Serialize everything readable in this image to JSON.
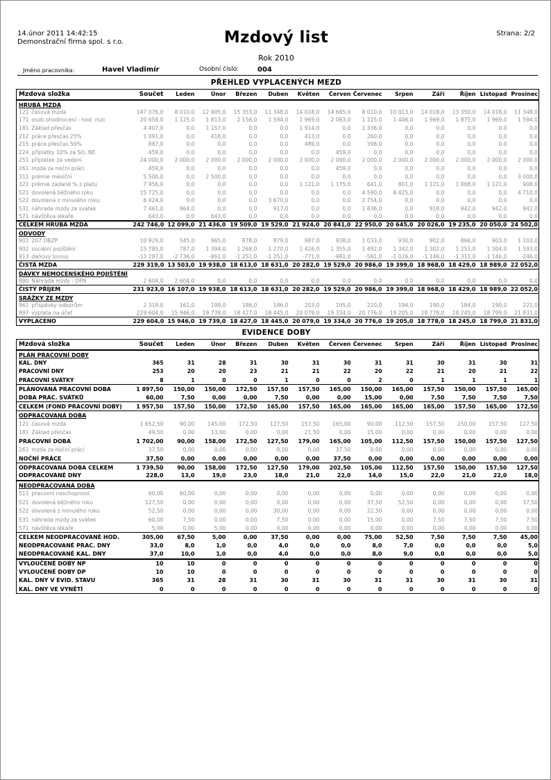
{
  "header": {
    "datetime": "14.únor 2011  14:42:15",
    "company": "Demonstrační firma spol. s r.o.",
    "title": "Mzdový list",
    "page": "Strana: 2/2",
    "year": "Rok 2010",
    "employee_label": "Jméno pracovníka:",
    "employee_name": "Havel Vladimír",
    "number_label": "Osobní číslo:",
    "number": "004"
  },
  "columns": [
    "Mzdová složka",
    "Součet",
    "Leden",
    "Únor",
    "Březen",
    "Duben",
    "Květen",
    "Červen",
    "Červenec",
    "Srpen",
    "Září",
    "Říjen",
    "Listopad",
    "Prosinec"
  ],
  "wages": {
    "title": "PŘEHLED VYPLACENÝCH MEZD",
    "rows": [
      {
        "t": "s",
        "label": "HRUBÁ MZDA"
      },
      {
        "t": "i",
        "code": "121",
        "label": "časová mzda",
        "v": [
          "147 076,0",
          "8 010,0",
          "12 905,0",
          "15 353,0",
          "11 348,0",
          "14 018,0",
          "14 685,0",
          "8 010,0",
          "10 013,0",
          "14 018,0",
          "13 350,0",
          "14 018,0",
          "11 348,0"
        ]
      },
      {
        "t": "i",
        "code": "171",
        "label": "osob.ohodnocení - hod. mzc",
        "v": [
          "20 658,0",
          "1 125,0",
          "1 813,0",
          "2 156,0",
          "1 594,0",
          "1 969,0",
          "2 063,0",
          "1 125,0",
          "1 406,0",
          "1 969,0",
          "1 875,0",
          "1 969,0",
          "1 594,0"
        ]
      },
      {
        "t": "i",
        "code": "181",
        "label": "Základ přesčas",
        "v": [
          "4 407,0",
          "0,0",
          "1 157,0",
          "0,0",
          "0,0",
          "1 914,0",
          "0,0",
          "1 336,0",
          "0,0",
          "0,0",
          "0,0",
          "0,0",
          "0,0"
        ]
      },
      {
        "t": "i",
        "code": "212",
        "label": "práce přesčas 25%",
        "v": [
          "1 091,0",
          "0,0",
          "418,0",
          "0,0",
          "0,0",
          "413,0",
          "0,0",
          "260,0",
          "0,0",
          "0,0",
          "0,0",
          "0,0",
          "0,0"
        ]
      },
      {
        "t": "i",
        "code": "215",
        "label": "práce přesčas 50%",
        "v": [
          "887,0",
          "0,0",
          "0,0",
          "0,0",
          "0,0",
          "489,0",
          "0,0",
          "398,0",
          "0,0",
          "0,0",
          "0,0",
          "0,0",
          "0,0"
        ]
      },
      {
        "t": "i",
        "code": "224",
        "label": "příplatky 10% za SO, NE",
        "v": [
          "459,0",
          "0,0",
          "0,0",
          "0,0",
          "0,0",
          "0,0",
          "459,0",
          "0,0",
          "0,0",
          "0,0",
          "0,0",
          "0,0",
          "0,0"
        ]
      },
      {
        "t": "i",
        "code": "251",
        "label": "příplatek za vedení",
        "v": [
          "24 000,0",
          "2 000,0",
          "2 000,0",
          "2 000,0",
          "2 000,0",
          "2 000,0",
          "2 000,0",
          "2 000,0",
          "2 000,0",
          "2 000,0",
          "2 000,0",
          "2 000,0",
          "2 000,0"
        ]
      },
      {
        "t": "i",
        "code": "261",
        "label": "mzda za noční práci",
        "v": [
          "459,0",
          "0,0",
          "0,0",
          "0,0",
          "0,0",
          "0,0",
          "459,0",
          "0,0",
          "0,0",
          "0,0",
          "0,0",
          "0,0",
          "0,0"
        ]
      },
      {
        "t": "i",
        "code": "311",
        "label": "prémie měsíční",
        "v": [
          "5 500,0",
          "0,0",
          "2 500,0",
          "0,0",
          "0,0",
          "0,0",
          "0,0",
          "0,0",
          "0,0",
          "0,0",
          "0,0",
          "0,0",
          "3 000,0"
        ]
      },
      {
        "t": "i",
        "code": "321",
        "label": "prémie zadané % z platu",
        "v": [
          "7 956,0",
          "0,0",
          "0,0",
          "0,0",
          "0,0",
          "1 121,0",
          "1 175,0",
          "641,0",
          "801,0",
          "1 121,0",
          "1 068,0",
          "1 121,0",
          "908,0"
        ]
      },
      {
        "t": "i",
        "code": "521",
        "label": "dovolená běžného roku",
        "v": [
          "15 725,0",
          "0,0",
          "0,0",
          "0,0",
          "0,0",
          "0,0",
          "0,0",
          "4 590,0",
          "6 425,0",
          "0,0",
          "0,0",
          "0,0",
          "4 710,0"
        ]
      },
      {
        "t": "i",
        "code": "522",
        "label": "dovolená z minulého roku",
        "v": [
          "6 424,0",
          "0,0",
          "0,0",
          "0,0",
          "3 670,0",
          "0,0",
          "0,0",
          "2 754,0",
          "0,0",
          "0,0",
          "0,0",
          "0,0",
          "0,0"
        ]
      },
      {
        "t": "i",
        "code": "531",
        "label": "náhrada mzdy za svátek",
        "v": [
          "7 461,0",
          "964,0",
          "0,0",
          "0,0",
          "917,0",
          "0,0",
          "0,0",
          "1 836,0",
          "0,0",
          "918,0",
          "942,0",
          "942,0",
          "942,0"
        ]
      },
      {
        "t": "i",
        "code": "571",
        "label": "návštěva lékaře",
        "v": [
          "643,0",
          "0,0",
          "643,0",
          "0,0",
          "0,0",
          "0,0",
          "0,0",
          "0,0",
          "0,0",
          "0,0",
          "0,0",
          "0,0",
          "0,0"
        ]
      },
      {
        "t": "t tt bb",
        "label": "CELKEM HRUBÁ MZDA",
        "v": [
          "242 746,0",
          "12 099,0",
          "21 436,0",
          "19 509,0",
          "19 529,0",
          "21 924,0",
          "20 841,0",
          "22 950,0",
          "20 645,0",
          "20 026,0",
          "19 235,0",
          "20 050,0",
          "24 502,0"
        ]
      },
      {
        "t": "s",
        "label": "ODVODY"
      },
      {
        "t": "i",
        "code": "901",
        "label": "207 OBZP",
        "v": [
          "10 929,0",
          "545,0",
          "965,0",
          "878,0",
          "879,0",
          "987,0",
          "938,0",
          "1 033,0",
          "930,0",
          "902,0",
          "866,0",
          "903,0",
          "1 103,0"
        ]
      },
      {
        "t": "i",
        "code": "902",
        "label": "sociální pojištění",
        "v": [
          "15 785,0",
          "787,0",
          "1 394,0",
          "1 269,0",
          "1 270,0",
          "1 426,0",
          "1 355,0",
          "1 492,0",
          "1 342,0",
          "1 302,0",
          "1 251,0",
          "1 304,0",
          "1 593,0"
        ]
      },
      {
        "t": "i",
        "code": "913",
        "label": "daňový bonus",
        "v": [
          "-13 287,0",
          "-2 736,0",
          "-861,0",
          "-1 251,0",
          "-1 251,0",
          "-771,0",
          "-981,0",
          "-561,0",
          "-1 026,0",
          "-1 146,0",
          "-1 311,0",
          "-1 146,0",
          "-246,0"
        ]
      },
      {
        "t": "t bt bb",
        "label": "ČISTÁ MZDA",
        "v": [
          "229 319,0",
          "13 503,0",
          "19 938,0",
          "18 613,0",
          "18 631,0",
          "20 282,0",
          "19 529,0",
          "20 986,0",
          "19 399,0",
          "18 968,0",
          "18 429,0",
          "18 989,0",
          "22 052,0"
        ]
      },
      {
        "t": "s",
        "label": "DÁVKY NEMOCENSKÉHO POJIŠTĚNÍ"
      },
      {
        "t": "i",
        "code": "880",
        "label": "Náhrada mzdy - DPN",
        "v": [
          "2 604,0",
          "2 604,0",
          "0,0",
          "0,0",
          "0,0",
          "0,0",
          "0,0",
          "0,0",
          "0,0",
          "0,0",
          "0,0",
          "0,0",
          "0,0"
        ]
      },
      {
        "t": "t bt bb",
        "label": "ČISTÝ PŘÍJEM",
        "v": [
          "231 923,0",
          "16 107,0",
          "19 938,0",
          "18 613,0",
          "18 631,0",
          "20 282,0",
          "19 529,0",
          "20 986,0",
          "19 399,0",
          "18 968,0",
          "18 429,0",
          "18 989,0",
          "22 052,0"
        ]
      },
      {
        "t": "s",
        "label": "SRÁŽKY ZE MZDY"
      },
      {
        "t": "i",
        "code": "961",
        "label": "příspěvky odborům",
        "v": [
          "2 319,0",
          "161,0",
          "199,0",
          "186,0",
          "186,0",
          "203,0",
          "195,0",
          "210,0",
          "194,0",
          "190,0",
          "184,0",
          "190,0",
          "221,0"
        ]
      },
      {
        "t": "i",
        "code": "997",
        "label": "výplata na účet",
        "v": [
          "229 604,0",
          "15 946,0",
          "19 739,0",
          "18 427,0",
          "18 445,0",
          "20 079,0",
          "19 334,0",
          "20 776,0",
          "19 205,0",
          "18 778,0",
          "18 245,0",
          "18 799,0",
          "21 831,0"
        ]
      },
      {
        "t": "t bt",
        "label": "VYPLACENO",
        "v": [
          "229 604,0",
          "15 946,0",
          "19 739,0",
          "18 427,0",
          "18 445,0",
          "20 079,0",
          "19 334,0",
          "20 776,0",
          "19 205,0",
          "18 778,0",
          "18 245,0",
          "18 799,0",
          "21 831,0"
        ]
      }
    ]
  },
  "time": {
    "title": "EVIDENCE DOBY",
    "rows": [
      {
        "t": "s",
        "label": "PLÁN PRACOVNÍ DOBY"
      },
      {
        "t": "b",
        "label": "KAL. DNY",
        "v": [
          "365",
          "31",
          "28",
          "31",
          "30",
          "31",
          "30",
          "31",
          "31",
          "30",
          "31",
          "30",
          "31"
        ]
      },
      {
        "t": "b",
        "label": "PRACOVNÍ DNY",
        "v": [
          "253",
          "20",
          "20",
          "23",
          "21",
          "21",
          "22",
          "20",
          "22",
          "21",
          "20",
          "21",
          "22"
        ]
      },
      {
        "t": "b",
        "label": "PRACOVNÍ SVÁTKY",
        "v": [
          "8",
          "1",
          "0",
          "0",
          "1",
          "0",
          "0",
          "2",
          "0",
          "1",
          "1",
          "1",
          "1"
        ]
      },
      {
        "t": "t bt",
        "label": "PLÁNOVANÁ PRACOVNÍ DOBA",
        "v": [
          "1 897,50",
          "150,00",
          "150,00",
          "172,50",
          "157,50",
          "157,50",
          "165,00",
          "150,00",
          "165,00",
          "157,50",
          "150,00",
          "157,50",
          "165,00"
        ]
      },
      {
        "t": "t",
        "label": "DOBA PRAC. SVÁTKŮ",
        "v": [
          "60,00",
          "7,50",
          "0,00",
          "0,00",
          "7,50",
          "0,00",
          "0,00",
          "15,00",
          "0,00",
          "7,50",
          "7,50",
          "7,50",
          "7,50"
        ]
      },
      {
        "t": "t bt bb",
        "label": "CELKEM (FOND PRACOVNÍ DOBY)",
        "v": [
          "1 957,50",
          "157,50",
          "150,00",
          "172,50",
          "165,00",
          "157,50",
          "165,00",
          "165,00",
          "165,00",
          "165,00",
          "157,50",
          "165,00",
          "172,50"
        ]
      },
      {
        "t": "s",
        "label": "ODPRACOVANÁ DOBA"
      },
      {
        "t": "i",
        "code": "121",
        "label": "časová mzda",
        "v": [
          "1 652,50",
          "90,00",
          "145,00",
          "172,50",
          "127,50",
          "157,50",
          "165,00",
          "90,00",
          "112,50",
          "157,50",
          "150,00",
          "157,50",
          "127,50"
        ]
      },
      {
        "t": "i",
        "code": "181",
        "label": "Základ přesčas",
        "v": [
          "49,50",
          "0,00",
          "13,00",
          "0,00",
          "0,00",
          "21,50",
          "0,00",
          "15,00",
          "0,00",
          "0,00",
          "0,00",
          "0,00",
          "0,00"
        ]
      },
      {
        "t": "t",
        "label": "PRACOVNÍ DOBA",
        "v": [
          "1 702,00",
          "90,00",
          "158,00",
          "172,50",
          "127,50",
          "179,00",
          "165,00",
          "105,00",
          "112,50",
          "157,50",
          "150,00",
          "157,50",
          "127,50"
        ]
      },
      {
        "t": "i",
        "code": "261",
        "label": "mzda za noční práci",
        "v": [
          "37,50",
          "0,00",
          "0,00",
          "0,00",
          "0,00",
          "0,00",
          "37,50",
          "0,00",
          "0,00",
          "0,00",
          "0,00",
          "0,00",
          "0,00"
        ]
      },
      {
        "t": "t",
        "label": "NOČNÍ PRÁCE",
        "v": [
          "37,50",
          "0,00",
          "0,00",
          "0,00",
          "0,00",
          "0,00",
          "37,50",
          "0,00",
          "0,00",
          "0,00",
          "0,00",
          "0,00",
          "0,00"
        ]
      },
      {
        "t": "t bt",
        "label": "ODPRACOVANÁ DOBA CELKEM",
        "v": [
          "1 739,50",
          "90,00",
          "158,00",
          "172,50",
          "127,50",
          "179,00",
          "202,50",
          "105,00",
          "112,50",
          "157,50",
          "150,00",
          "157,50",
          "127,50"
        ]
      },
      {
        "t": "t tb",
        "label": "ODPRACOVANÉ DNY",
        "v": [
          "228,0",
          "13,0",
          "19,0",
          "23,0",
          "18,0",
          "21,0",
          "22,0",
          "14,0",
          "15,0",
          "22,0",
          "21,0",
          "22,0",
          "18,0"
        ]
      },
      {
        "t": "s",
        "label": "NEODPRACOVANÁ DOBA"
      },
      {
        "t": "i",
        "code": "511",
        "label": "pracovní neschopnost",
        "v": [
          "60,00",
          "60,00",
          "0,00",
          "0,00",
          "0,00",
          "0,00",
          "0,00",
          "0,00",
          "0,00",
          "0,00",
          "0,00",
          "0,00",
          "0,00"
        ]
      },
      {
        "t": "i",
        "code": "521",
        "label": "dovolená běžného roku",
        "v": [
          "127,50",
          "0,00",
          "0,00",
          "0,00",
          "0,00",
          "0,00",
          "0,00",
          "37,50",
          "52,50",
          "0,00",
          "0,00",
          "0,00",
          "37,50"
        ]
      },
      {
        "t": "i",
        "code": "522",
        "label": "dovolená z minulého roku",
        "v": [
          "52,50",
          "0,00",
          "0,00",
          "0,00",
          "30,00",
          "0,00",
          "0,00",
          "22,50",
          "0,00",
          "0,00",
          "0,00",
          "0,00",
          "0,00"
        ]
      },
      {
        "t": "i",
        "code": "531",
        "label": "náhrada mzdy za svátek",
        "v": [
          "60,00",
          "7,50",
          "0,00",
          "0,00",
          "7,50",
          "0,00",
          "0,00",
          "15,00",
          "0,00",
          "7,50",
          "7,50",
          "7,50",
          "7,50"
        ]
      },
      {
        "t": "i",
        "code": "571",
        "label": "návštěva lékaře",
        "v": [
          "5,00",
          "0,00",
          "5,00",
          "0,00",
          "0,00",
          "0,00",
          "0,00",
          "0,00",
          "0,00",
          "0,00",
          "0,00",
          "0,00",
          "0,00"
        ]
      },
      {
        "t": "t bt",
        "label": "CELKEM NEODPRACOVANÉ HOD.",
        "v": [
          "305,00",
          "67,50",
          "5,00",
          "0,00",
          "37,50",
          "0,00",
          "0,00",
          "75,00",
          "52,50",
          "7,50",
          "7,50",
          "7,50",
          "45,00"
        ]
      },
      {
        "t": "t",
        "label": "NEODPRACOVANÉ PRAC. DNY",
        "v": [
          "33,0",
          "8,0",
          "1,0",
          "0,0",
          "4,0",
          "0,0",
          "0,0",
          "8,0",
          "7,0",
          "0,0",
          "0,0",
          "0,0",
          "5,0"
        ]
      },
      {
        "t": "t",
        "label": "NEODPRACOVANÉ KAL. DNY",
        "v": [
          "37,0",
          "10,0",
          "1,0",
          "0,0",
          "4,0",
          "0,0",
          "0,0",
          "8,0",
          "9,0",
          "0,0",
          "0,0",
          "0,0",
          "5,0"
        ]
      },
      {
        "t": "t tt",
        "label": "VYLOUČENÉ DOBY NP",
        "v": [
          "10",
          "10",
          "0",
          "0",
          "0",
          "0",
          "0",
          "0",
          "0",
          "0",
          "0",
          "0",
          "0"
        ]
      },
      {
        "t": "t",
        "label": "VYLOUČENÉ DOBY DP",
        "v": [
          "10",
          "10",
          "0",
          "0",
          "0",
          "0",
          "0",
          "0",
          "0",
          "0",
          "0",
          "0",
          "0"
        ]
      },
      {
        "t": "t",
        "label": "KAL. DNY V EVID. STAVU",
        "v": [
          "365",
          "31",
          "28",
          "31",
          "30",
          "31",
          "30",
          "31",
          "31",
          "30",
          "31",
          "30",
          "31"
        ]
      },
      {
        "t": "t",
        "label": "KAL. DNY VE VYNĚTÍ",
        "v": [
          "0",
          "0",
          "0",
          "0",
          "0",
          "0",
          "0",
          "0",
          "0",
          "0",
          "0",
          "0",
          "0"
        ]
      }
    ]
  }
}
